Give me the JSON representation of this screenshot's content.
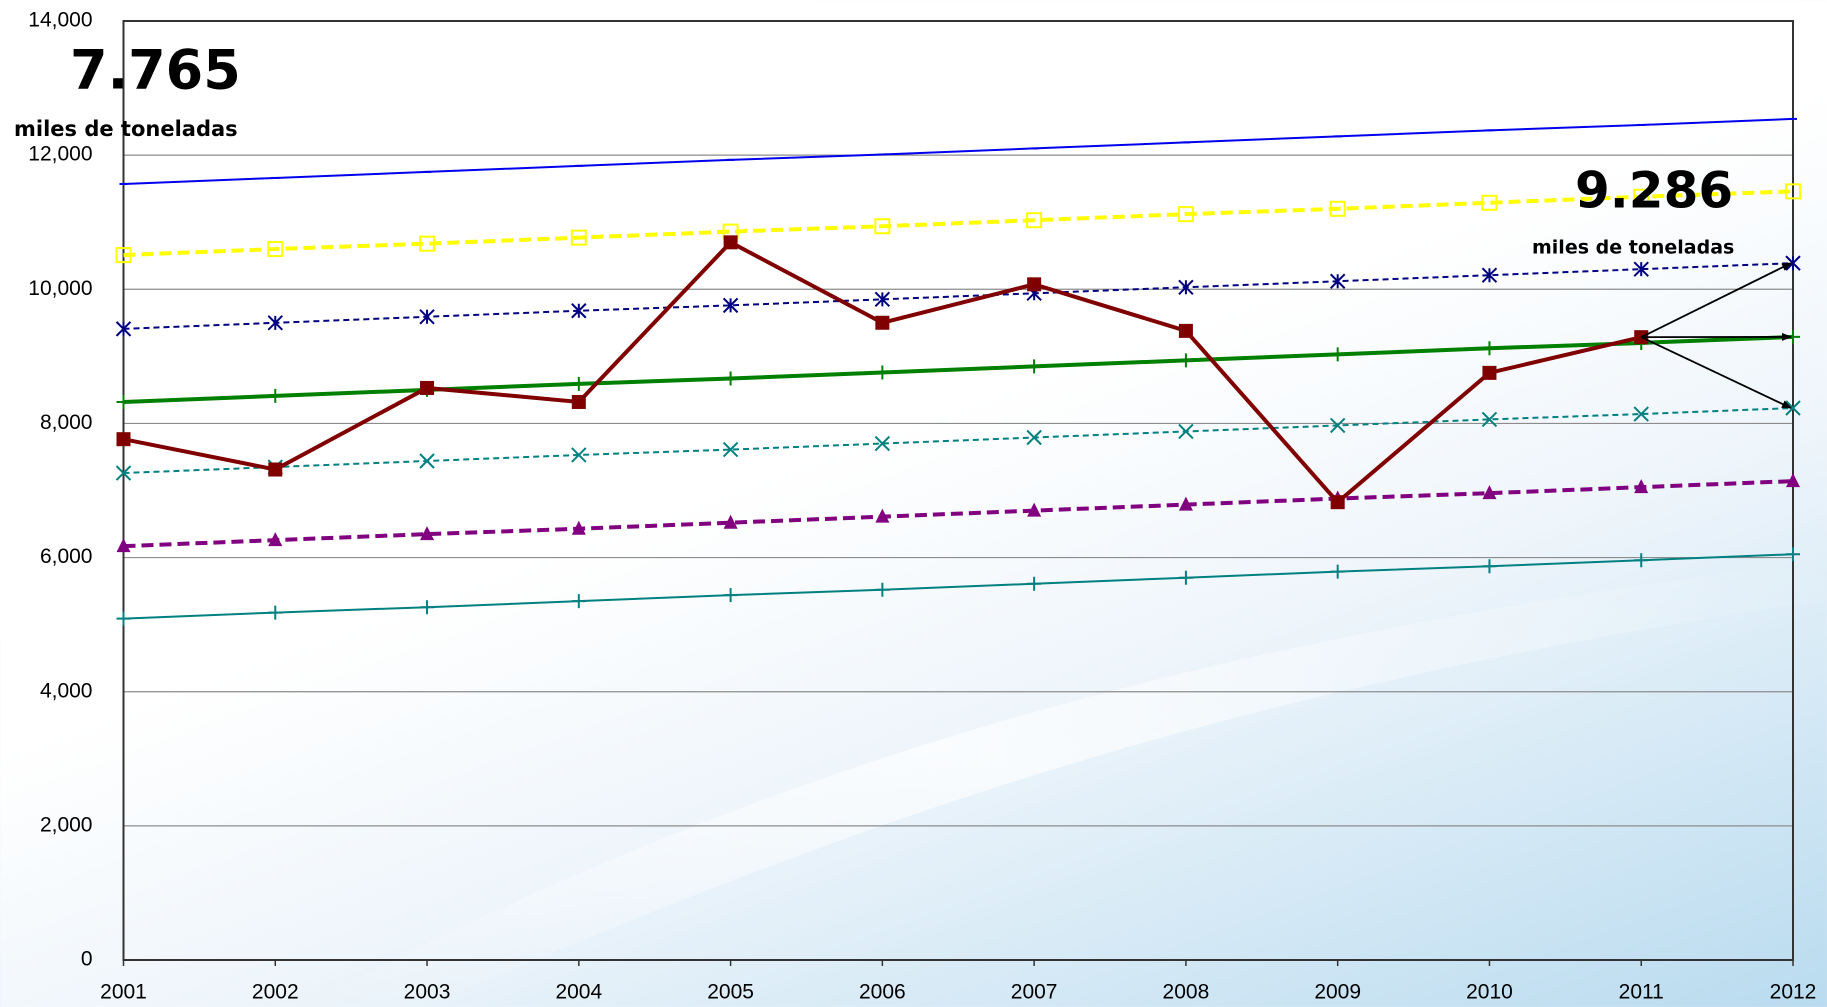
{
  "chart_data": {
    "type": "line",
    "annotations": [
      "7.765",
      "miles de toneladas",
      "9.286",
      "miles de toneladas"
    ],
    "x": [
      2001,
      2002,
      2003,
      2004,
      2005,
      2006,
      2007,
      2008,
      2009,
      2010,
      2011,
      2012
    ],
    "xlim": [
      2001,
      2012
    ],
    "xticks": [
      2001,
      2002,
      2003,
      2004,
      2005,
      2006,
      2007,
      2008,
      2009,
      2010,
      2011,
      2012
    ],
    "ylim": [
      0,
      14000
    ],
    "yticks": [
      0,
      {
        "value": 2000,
        "label": "2,000"
      },
      {
        "value": 4000,
        "label": "4,000"
      },
      {
        "value": 6000,
        "label": "6,000"
      },
      {
        "value": 8000,
        "label": "8,000"
      },
      {
        "value": 10000,
        "label": "10,000"
      },
      {
        "value": 12000,
        "label": "12,000"
      },
      {
        "value": 14000,
        "label": "14,000"
      }
    ],
    "grid": true,
    "series": [
      {
        "color": "#0000ee",
        "marker": "dash",
        "dash": "solid",
        "width": 2,
        "values": [
          11570,
          11660,
          11750,
          11840,
          11930,
          12010,
          12100,
          12190,
          12280,
          12370,
          12450,
          12540
        ]
      },
      {
        "color": "#ffff00",
        "marker": "square-open",
        "dash": "dashed",
        "width": 4,
        "values": [
          10510,
          10600,
          10680,
          10770,
          10860,
          10940,
          11030,
          11120,
          11200,
          11290,
          11380,
          11460
        ]
      },
      {
        "color": "#000080",
        "marker": "asterisk",
        "dash": "dotted",
        "width": 2,
        "values": [
          9410,
          9500,
          9590,
          9680,
          9760,
          9850,
          9940,
          10030,
          10120,
          10210,
          10300,
          10390
        ]
      },
      {
        "color": "#008000",
        "marker": "plus",
        "dash": "solid",
        "width": 4,
        "values": [
          8320,
          8410,
          8500,
          8590,
          8670,
          8760,
          8850,
          8940,
          9030,
          9120,
          9200,
          9290
        ]
      },
      {
        "color": "#008080",
        "marker": "cross",
        "dash": "dotted",
        "width": 2,
        "values": [
          7260,
          7350,
          7440,
          7530,
          7610,
          7700,
          7790,
          7880,
          7970,
          8060,
          8140,
          8230
        ]
      },
      {
        "color": "#800080",
        "marker": "triangle",
        "dash": "dashed",
        "width": 4,
        "values": [
          6170,
          6260,
          6350,
          6430,
          6520,
          6610,
          6700,
          6790,
          6880,
          6960,
          7050,
          7140
        ]
      },
      {
        "color": "#008080",
        "marker": "plus",
        "dash": "solid",
        "width": 2,
        "values": [
          5090,
          5180,
          5260,
          5350,
          5440,
          5520,
          5610,
          5700,
          5790,
          5870,
          5960,
          6050
        ]
      },
      {
        "color": "#800000",
        "marker": "square",
        "dash": "solid",
        "width": 4,
        "values": [
          7765,
          7313,
          8529,
          8320,
          10700,
          9501,
          10074,
          9380,
          6826,
          8754,
          9286,
          null
        ]
      }
    ]
  }
}
